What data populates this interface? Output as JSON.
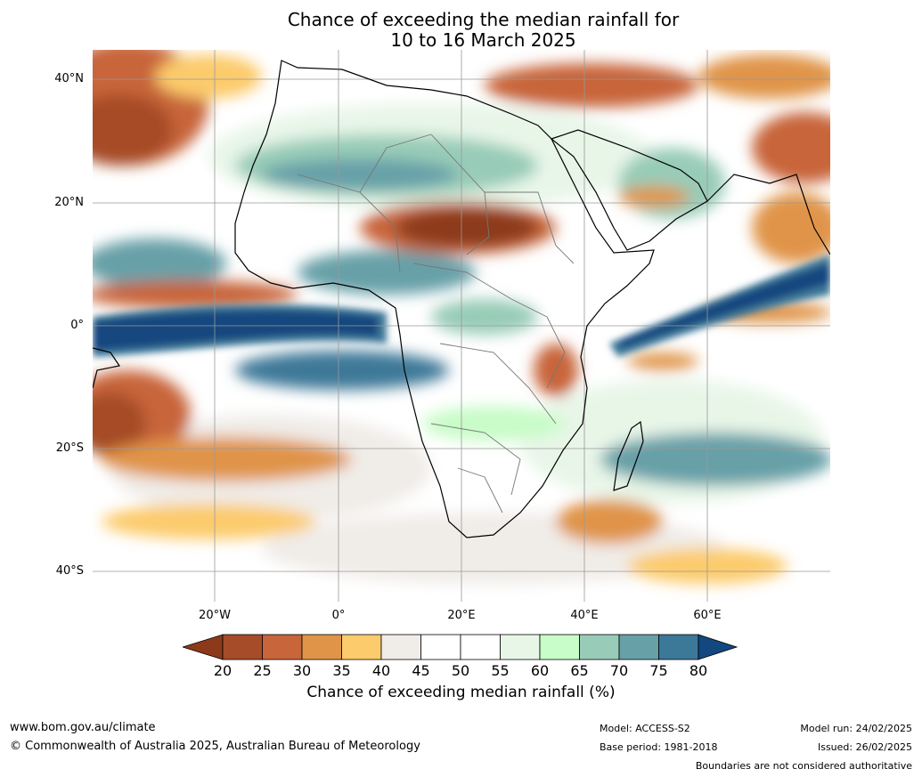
{
  "header": {
    "title_line1": "Chance of exceeding the median rainfall for",
    "title_line2": "10 to 16 March 2025"
  },
  "map": {
    "region": "Africa",
    "lat_labels": [
      "40°N",
      "20°N",
      "0°",
      "20°S",
      "40°S"
    ],
    "lon_labels": [
      "20°W",
      "0°",
      "20°E",
      "40°E",
      "60°E"
    ]
  },
  "legend": {
    "title": "Chance of exceeding median rainfall (%)",
    "ticks": [
      "20",
      "25",
      "30",
      "35",
      "40",
      "45",
      "50",
      "55",
      "60",
      "65",
      "70",
      "75",
      "80"
    ],
    "colors": {
      "lt20": "#8c3a1a",
      "c20_25": "#a64c28",
      "c25_30": "#c8653a",
      "c30_35": "#e09448",
      "c35_40": "#fccb6c",
      "c40_45": "#f0ece8",
      "c45_50": "#ffffff",
      "c50_55": "#ffffff",
      "c55_60": "#e8f6e8",
      "c60_65": "#c8fcc8",
      "c65_70": "#98ccb8",
      "c70_75": "#68a0a8",
      "c75_80": "#3c7898",
      "gt80": "#12477f"
    }
  },
  "footer": {
    "website": "www.bom.gov.au/climate",
    "copyright": "© Commonwealth of Australia 2025, Australian Bureau of Meteorology",
    "model": "Model: ACCESS-S2",
    "base_period": "Base period: 1981-2018",
    "model_run": "Model run: 24/02/2025",
    "issued": "Issued: 26/02/2025",
    "disclaimer": "Boundaries are not considered authoritative"
  }
}
